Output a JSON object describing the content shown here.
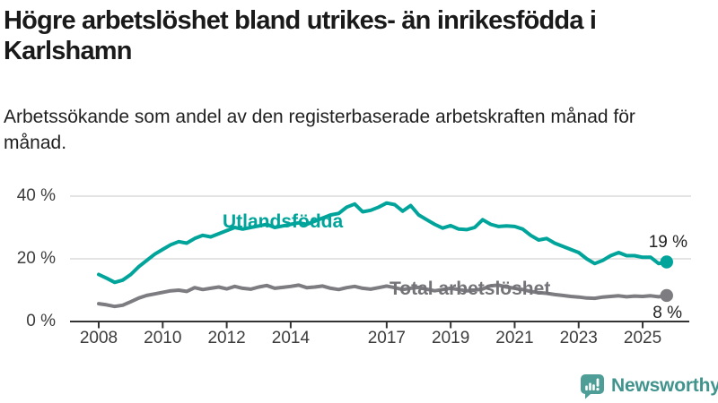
{
  "header": {
    "title": "Högre arbetslöshet bland utrikes- än inrikesfödda i Karlshamn",
    "subtitle": "Arbetssökande som andel av den registerbaserade arbetskraften månad för månad."
  },
  "chart_data": {
    "type": "line",
    "title": "Högre arbetslöshet bland utrikes- än inrikesfödda i Karlshamn",
    "xlabel": "",
    "ylabel": "Arbetssökande som andel av den registerbaserade arbetskraften",
    "x_unit": "year (monthly series shown, sampled quarterly)",
    "x_start_year": 2008.0,
    "x_step_years": 0.25,
    "x_end_year": 2025.75,
    "ylim": [
      0,
      42
    ],
    "grid": "horizontal",
    "legend_position": "inline-labels",
    "y_ticks": [
      {
        "label": "0 %",
        "value": 0
      },
      {
        "label": "20 %",
        "value": 20
      },
      {
        "label": "40 %",
        "value": 40
      }
    ],
    "x_ticks": [
      {
        "label": "2008",
        "year": 2008
      },
      {
        "label": "2010",
        "year": 2010
      },
      {
        "label": "2012",
        "year": 2012
      },
      {
        "label": "2014",
        "year": 2014
      },
      {
        "label": "2017",
        "year": 2017
      },
      {
        "label": "2019",
        "year": 2019
      },
      {
        "label": "2021",
        "year": 2021
      },
      {
        "label": "2023",
        "year": 2023
      },
      {
        "label": "2025",
        "year": 2025
      }
    ],
    "series": [
      {
        "name": "Utlandsfödda",
        "color": "#00a49a",
        "label_color": "#00a49a",
        "end_label": "19 %",
        "end_value": 19,
        "values": [
          15.0,
          13.8,
          12.5,
          13.2,
          15.0,
          17.5,
          19.5,
          21.5,
          23.0,
          24.5,
          25.5,
          25.0,
          26.5,
          27.5,
          27.0,
          28.0,
          29.0,
          30.0,
          29.5,
          30.0,
          30.5,
          31.0,
          30.0,
          30.5,
          31.0,
          31.5,
          31.0,
          32.0,
          33.0,
          34.0,
          34.5,
          36.5,
          37.5,
          35.0,
          35.5,
          36.5,
          37.8,
          37.3,
          35.2,
          37.0,
          34.0,
          32.5,
          31.0,
          29.8,
          30.6,
          29.5,
          29.3,
          30.0,
          32.5,
          31.0,
          30.3,
          30.5,
          30.3,
          29.5,
          27.5,
          26.0,
          26.5,
          25.0,
          24.0,
          23.0,
          22.0,
          20.0,
          18.5,
          19.5,
          21.0,
          22.0,
          21.0,
          21.0,
          20.5,
          20.5,
          18.5,
          19.0
        ]
      },
      {
        "name": "Total arbetslöshet",
        "color": "#7c7c81",
        "label_color": "#737378",
        "end_label": "8 %",
        "end_value": 8,
        "values": [
          5.7,
          5.3,
          4.8,
          5.2,
          6.3,
          7.5,
          8.3,
          8.8,
          9.3,
          9.8,
          10.0,
          9.6,
          10.8,
          10.2,
          10.6,
          11.0,
          10.4,
          11.2,
          10.6,
          10.3,
          11.0,
          11.5,
          10.6,
          10.9,
          11.2,
          11.6,
          10.8,
          11.0,
          11.3,
          10.6,
          10.2,
          10.8,
          11.2,
          10.6,
          10.3,
          10.8,
          11.3,
          10.8,
          10.2,
          10.6,
          10.9,
          10.3,
          9.8,
          10.2,
          10.6,
          10.2,
          9.8,
          10.0,
          10.4,
          11.4,
          11.6,
          11.0,
          10.6,
          10.2,
          9.6,
          9.2,
          9.0,
          8.6,
          8.3,
          8.0,
          7.8,
          7.5,
          7.4,
          7.8,
          8.0,
          8.2,
          7.9,
          8.1,
          8.0,
          8.2,
          7.9,
          8.3
        ]
      }
    ],
    "axis_color": "#333333",
    "gridline_color": "#dcdcdc"
  },
  "footer": {
    "brand": "Newsworthy",
    "brand_color": "#41948d",
    "icon_color": "#4e9d97"
  }
}
